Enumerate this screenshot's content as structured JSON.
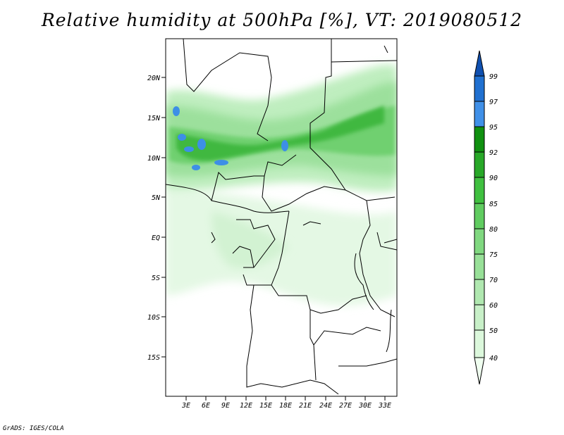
{
  "title": "Relative humidity at 500hPa [%], VT: 2019080512",
  "credit": "GrADS: IGES/COLA",
  "lat_labels": [
    "20N",
    "15N",
    "10N",
    "5N",
    "EQ",
    "5S",
    "10S",
    "15S"
  ],
  "lon_labels": [
    "3E",
    "6E",
    "9E",
    "12E",
    "15E",
    "18E",
    "21E",
    "24E",
    "27E",
    "30E",
    "33E"
  ],
  "colorbar": {
    "levels": [
      "40",
      "50",
      "60",
      "70",
      "75",
      "80",
      "85",
      "90",
      "92",
      "95",
      "97",
      "99"
    ],
    "colors": [
      "#f0fff0",
      "#dcf8dc",
      "#c8f0c8",
      "#b0e8b0",
      "#98e098",
      "#80d880",
      "#60cc60",
      "#40c040",
      "#28a828",
      "#109010",
      "#4090e8",
      "#2070d0",
      "#1050b0"
    ]
  }
}
